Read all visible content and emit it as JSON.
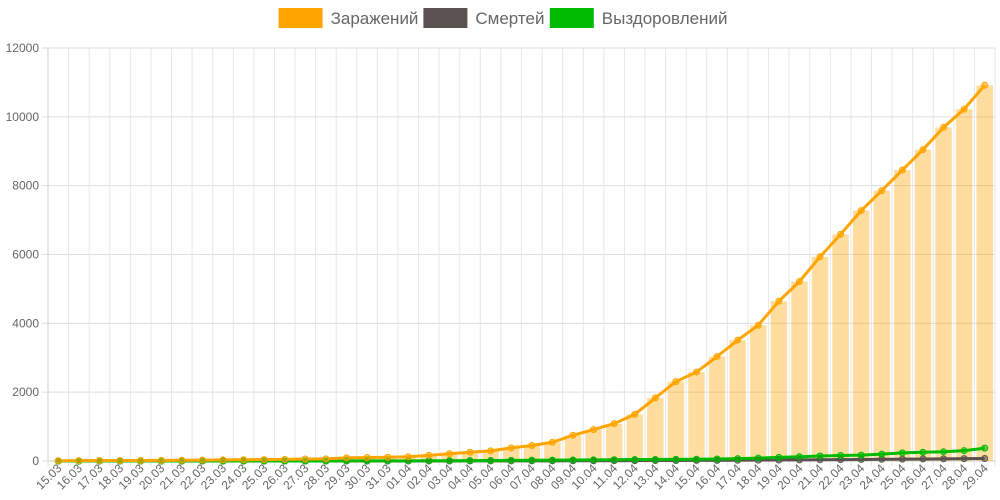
{
  "chart_data": {
    "type": "bar",
    "title": "",
    "xlabel": "",
    "ylabel": "",
    "ylim": [
      0,
      12000
    ],
    "yticks": [
      0,
      2000,
      4000,
      6000,
      8000,
      10000,
      12000
    ],
    "grid": true,
    "legend_position": "top-center",
    "categories": [
      "15.03",
      "16.03",
      "17.03",
      "18.03",
      "19.03",
      "20.03",
      "21.03",
      "22.03",
      "23.03",
      "24.03",
      "25.03",
      "26.03",
      "27.03",
      "28.03",
      "29.03",
      "30.03",
      "31.03",
      "01.04",
      "02.04",
      "03.04",
      "04.04",
      "05.04",
      "06.04",
      "07.04",
      "08.04",
      "09.04",
      "10.04",
      "11.04",
      "12.04",
      "13.04",
      "14.04",
      "15.04",
      "16.04",
      "17.04",
      "18.04",
      "19.04",
      "20.04",
      "21.04",
      "22.04",
      "23.04",
      "24.04",
      "25.04",
      "26.04",
      "27.04",
      "28.04",
      "29.04"
    ],
    "series": [
      {
        "name": "Заражений",
        "color": "#FFA500",
        "values": [
          9,
          12,
          14,
          15,
          16,
          19,
          21,
          27,
          33,
          36,
          41,
          47,
          57,
          63,
          92,
          100,
          108,
          122,
          165,
          210,
          255,
          295,
          382,
          450,
          544,
          748,
          912,
          1085,
          1354,
          1833,
          2307,
          2584,
          3036,
          3511,
          3944,
          4644,
          5216,
          5933,
          6586,
          7276,
          7857,
          8454,
          9046,
          9692,
          10224,
          10918
        ]
      },
      {
        "name": "Смертей",
        "color": "#5A5250",
        "values": [
          0,
          0,
          0,
          0,
          0,
          0,
          0,
          0,
          0,
          0,
          0,
          0,
          0,
          0,
          0,
          0,
          1,
          1,
          1,
          1,
          2,
          2,
          3,
          4,
          5,
          6,
          8,
          9,
          11,
          13,
          15,
          17,
          19,
          22,
          25,
          29,
          32,
          35,
          40,
          45,
          50,
          55,
          60,
          63,
          70,
          73
        ]
      },
      {
        "name": "Выздоровлений",
        "color": "#00BB00",
        "values": [
          0,
          0,
          0,
          0,
          0,
          0,
          0,
          0,
          0,
          0,
          0,
          0,
          1,
          1,
          2,
          3,
          4,
          5,
          7,
          9,
          12,
          14,
          17,
          21,
          25,
          30,
          34,
          38,
          42,
          45,
          47,
          50,
          58,
          70,
          85,
          105,
          125,
          145,
          160,
          170,
          200,
          235,
          255,
          270,
          300,
          375
        ]
      }
    ]
  }
}
